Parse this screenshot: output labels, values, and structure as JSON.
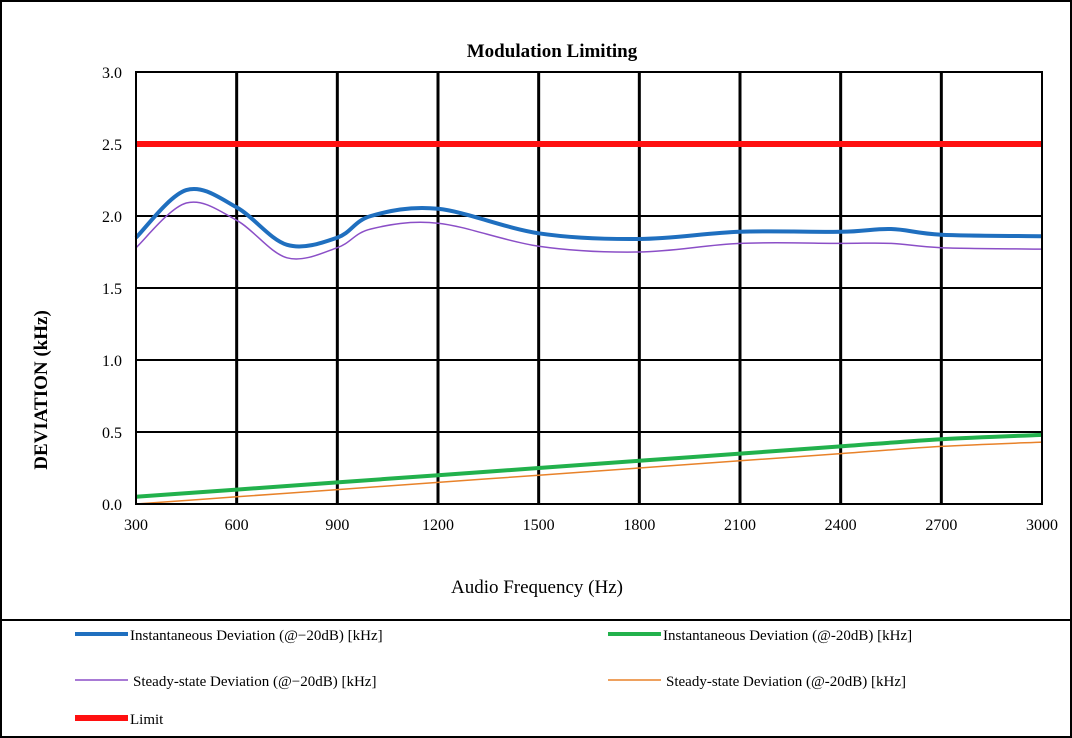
{
  "chart_data": {
    "type": "line",
    "title": "Modulation Limiting",
    "xlabel": "Audio Frequency (Hz)",
    "ylabel": "DEVIATION (kHz)",
    "xlim": [
      300,
      3000
    ],
    "ylim": [
      0.0,
      3.0
    ],
    "x_ticks": [
      300,
      600,
      900,
      1200,
      1500,
      1800,
      2100,
      2400,
      2700,
      3000
    ],
    "y_ticks": [
      0.0,
      0.5,
      1.0,
      1.5,
      2.0,
      2.5,
      3.0
    ],
    "y_tick_labels": [
      "0.0",
      "0.5",
      "1.0",
      "1.5",
      "2.0",
      "2.5",
      "3.0"
    ],
    "grid": true,
    "legend_position": "bottom",
    "series": [
      {
        "name": "Instantaneous Deviation (@−20dB) [kHz]",
        "color": "#1f6fbf",
        "x": [
          300,
          450,
          600,
          750,
          900,
          1000,
          1200,
          1500,
          1800,
          2100,
          2400,
          2550,
          2700,
          3000
        ],
        "y": [
          1.85,
          2.18,
          2.06,
          1.8,
          1.85,
          2.0,
          2.05,
          1.88,
          1.84,
          1.89,
          1.89,
          1.91,
          1.87,
          1.86
        ]
      },
      {
        "name": "Instantaneous Deviation (@-20dB) [kHz]",
        "color": "#22b14c",
        "x": [
          300,
          600,
          900,
          1200,
          1500,
          1800,
          2100,
          2400,
          2700,
          3000
        ],
        "y": [
          0.05,
          0.1,
          0.15,
          0.2,
          0.25,
          0.3,
          0.35,
          0.4,
          0.45,
          0.48
        ]
      },
      {
        "name": "Steady-state Deviation (@−20dB) [kHz]",
        "color": "#8b4fc7",
        "x": [
          300,
          450,
          600,
          750,
          900,
          1000,
          1200,
          1500,
          1800,
          2100,
          2400,
          2550,
          2700,
          3000
        ],
        "y": [
          1.78,
          2.09,
          1.97,
          1.71,
          1.78,
          1.91,
          1.95,
          1.79,
          1.75,
          1.81,
          1.81,
          1.81,
          1.78,
          1.77
        ]
      },
      {
        "name": "Steady-state Deviation (@-20dB) [kHz]",
        "color": "#e8822a",
        "x": [
          300,
          600,
          900,
          1200,
          1500,
          1800,
          2100,
          2400,
          2700,
          3000
        ],
        "y": [
          0.0,
          0.05,
          0.1,
          0.15,
          0.2,
          0.25,
          0.3,
          0.35,
          0.4,
          0.43
        ]
      },
      {
        "name": "Limit",
        "color": "#ff1010",
        "x": [
          300,
          3000
        ],
        "y": [
          2.5,
          2.5
        ]
      }
    ]
  }
}
